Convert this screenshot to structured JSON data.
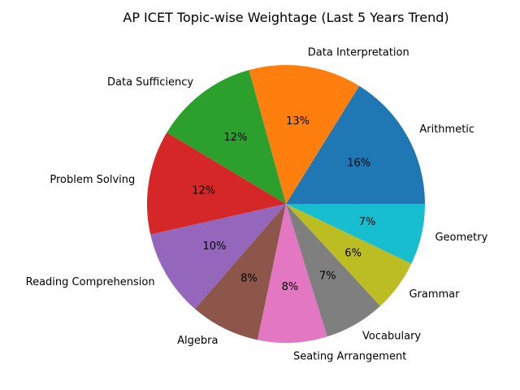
{
  "chart_data": {
    "type": "pie",
    "title": "AP ICET Topic-wise Weightage (Last 5 Years Trend)",
    "categories": [
      "Arithmetic",
      "Data Interpretation",
      "Data Sufficiency",
      "Problem Solving",
      "Reading Comprehension",
      "Algebra",
      "Seating Arrangement",
      "Vocabulary",
      "Grammar",
      "Geometry"
    ],
    "values": [
      16,
      13,
      12,
      12,
      10,
      8,
      8,
      7,
      6,
      7
    ],
    "value_labels": [
      "16%",
      "13%",
      "12%",
      "12%",
      "10%",
      "8%",
      "8%",
      "7%",
      "6%",
      "7%"
    ],
    "colors": [
      "#1f77b4",
      "#ff7f0e",
      "#2ca02c",
      "#d62728",
      "#9467bd",
      "#8c564b",
      "#e377c2",
      "#7f7f7f",
      "#bcbd22",
      "#17becf"
    ],
    "start_angle_deg": 0,
    "direction": "counterclockwise"
  }
}
